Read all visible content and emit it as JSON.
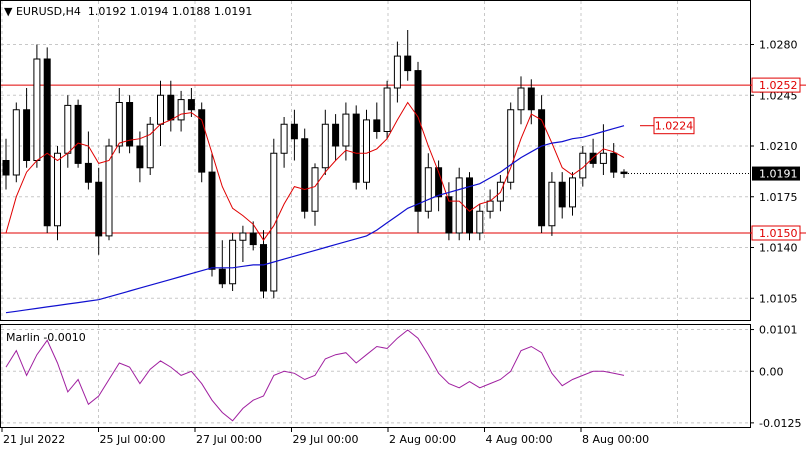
{
  "header": {
    "symbol_label": "EURUSD,H4",
    "open": "1.0192",
    "high": "1.0194",
    "low": "1.0188",
    "close": "1.0191"
  },
  "indicator": {
    "label": "Marlin -0.0010"
  },
  "colors": {
    "background": "#ffffff",
    "grid": "#c8c8c8",
    "level_line": "#e00000",
    "ma_fast": "#e00000",
    "ma_slow": "#1010d0",
    "oscillator": "#a020a0",
    "bull_candle": "#ffffff",
    "bear_candle": "#000000"
  },
  "price_axis": {
    "ticks": [
      "1.0280",
      "1.0245",
      "1.0210",
      "1.0175",
      "1.0140",
      "1.0105"
    ],
    "level_tags": [
      "1.0252",
      "1.0150"
    ],
    "current_price_tag": "1.0191",
    "ma_tag": "1.0224"
  },
  "oscillator_axis": {
    "ticks": [
      "0.0101",
      "0.00",
      "-0.0125"
    ]
  },
  "time_axis": {
    "labels": [
      "21 Jul 2022",
      "25 Jul 00:00",
      "27 Jul 00:00",
      "29 Jul 00:00",
      "2 Aug 00:00",
      "4 Aug 00:00",
      "8 Aug 00:00"
    ]
  },
  "chart_data": {
    "type": "candlestick",
    "ylim": [
      1.009,
      1.031
    ],
    "levels": [
      1.0252,
      1.015
    ],
    "candles": [
      [
        1.02,
        1.0215,
        1.018,
        1.019
      ],
      [
        1.019,
        1.024,
        1.0185,
        1.0235
      ],
      [
        1.0235,
        1.025,
        1.0195,
        1.02
      ],
      [
        1.02,
        1.028,
        1.0195,
        1.027
      ],
      [
        1.027,
        1.0278,
        1.015,
        1.0155
      ],
      [
        1.0155,
        1.021,
        1.0145,
        1.0205
      ],
      [
        1.0205,
        1.0245,
        1.0195,
        1.0238
      ],
      [
        1.0238,
        1.0242,
        1.0195,
        1.0198
      ],
      [
        1.0198,
        1.022,
        1.018,
        1.0185
      ],
      [
        1.0185,
        1.0195,
        1.0135,
        1.0148
      ],
      [
        1.0148,
        1.0215,
        1.0145,
        1.021
      ],
      [
        1.021,
        1.025,
        1.0205,
        1.024
      ],
      [
        1.024,
        1.0245,
        1.0205,
        1.021
      ],
      [
        1.021,
        1.022,
        1.0185,
        1.0195
      ],
      [
        1.0195,
        1.023,
        1.019,
        1.0225
      ],
      [
        1.0225,
        1.0255,
        1.021,
        1.0245
      ],
      [
        1.0245,
        1.0255,
        1.022,
        1.0228
      ],
      [
        1.0228,
        1.0248,
        1.022,
        1.0242
      ],
      [
        1.0242,
        1.025,
        1.023,
        1.0235
      ],
      [
        1.0235,
        1.024,
        1.0185,
        1.0192
      ],
      [
        1.0192,
        1.0205,
        1.012,
        1.0125
      ],
      [
        1.0125,
        1.0145,
        1.0112,
        1.0115
      ],
      [
        1.0115,
        1.015,
        1.011,
        1.0145
      ],
      [
        1.0145,
        1.0155,
        1.013,
        1.015
      ],
      [
        1.015,
        1.0158,
        1.0138,
        1.0142
      ],
      [
        1.0142,
        1.0152,
        1.0105,
        1.011
      ],
      [
        1.011,
        1.0215,
        1.0105,
        1.0205
      ],
      [
        1.0205,
        1.023,
        1.0195,
        1.0225
      ],
      [
        1.0225,
        1.0235,
        1.02,
        1.0215
      ],
      [
        1.0215,
        1.0222,
        1.016,
        1.0165
      ],
      [
        1.0165,
        1.0198,
        1.0155,
        1.0195
      ],
      [
        1.0195,
        1.0235,
        1.019,
        1.0225
      ],
      [
        1.0225,
        1.0232,
        1.02,
        1.021
      ],
      [
        1.021,
        1.024,
        1.02,
        1.0232
      ],
      [
        1.0232,
        1.0238,
        1.018,
        1.0185
      ],
      [
        1.0185,
        1.0235,
        1.018,
        1.0228
      ],
      [
        1.0228,
        1.024,
        1.0215,
        1.022
      ],
      [
        1.022,
        1.0255,
        1.0215,
        1.025
      ],
      [
        1.025,
        1.0282,
        1.024,
        1.0272
      ],
      [
        1.0272,
        1.029,
        1.0255,
        1.0262
      ],
      [
        1.0262,
        1.0268,
        1.015,
        1.0165
      ],
      [
        1.0165,
        1.0205,
        1.016,
        1.0195
      ],
      [
        1.0195,
        1.02,
        1.0165,
        1.0175
      ],
      [
        1.0175,
        1.0185,
        1.0145,
        1.015
      ],
      [
        1.015,
        1.0195,
        1.0145,
        1.0188
      ],
      [
        1.0188,
        1.0192,
        1.0145,
        1.015
      ],
      [
        1.015,
        1.017,
        1.0145,
        1.0165
      ],
      [
        1.0165,
        1.018,
        1.016,
        1.0172
      ],
      [
        1.0172,
        1.019,
        1.0165,
        1.0185
      ],
      [
        1.0185,
        1.024,
        1.018,
        1.0235
      ],
      [
        1.0235,
        1.0258,
        1.0225,
        1.025
      ],
      [
        1.025,
        1.0256,
        1.0225,
        1.0235
      ],
      [
        1.0235,
        1.0245,
        1.015,
        1.0155
      ],
      [
        1.0155,
        1.0192,
        1.0148,
        1.0185
      ],
      [
        1.0185,
        1.0192,
        1.016,
        1.0168
      ],
      [
        1.0168,
        1.0192,
        1.0162,
        1.0188
      ],
      [
        1.0188,
        1.021,
        1.0182,
        1.0205
      ],
      [
        1.0205,
        1.0215,
        1.0195,
        1.0198
      ],
      [
        1.0198,
        1.0225,
        1.019,
        1.0205
      ],
      [
        1.0205,
        1.0212,
        1.0188,
        1.0192
      ],
      [
        1.0192,
        1.0194,
        1.0188,
        1.0191
      ]
    ],
    "ma_fast": [
      1.015,
      1.0175,
      1.0192,
      1.02,
      1.0205,
      1.02,
      1.0205,
      1.0212,
      1.021,
      1.0198,
      1.02,
      1.0212,
      1.0214,
      1.0215,
      1.0218,
      1.0225,
      1.0228,
      1.0232,
      1.0233,
      1.0228,
      1.0205,
      1.0182,
      1.0167,
      1.0162,
      1.0156,
      1.0145,
      1.0155,
      1.017,
      1.0182,
      1.018,
      1.0182,
      1.0192,
      1.02,
      1.0207,
      1.0205,
      1.0205,
      1.0208,
      1.0215,
      1.0228,
      1.024,
      1.023,
      1.021,
      1.0192,
      1.0172,
      1.0172,
      1.0165,
      1.017,
      1.0172,
      1.0178,
      1.0195,
      1.0215,
      1.0232,
      1.0228,
      1.0212,
      1.0195,
      1.019,
      1.0195,
      1.0202,
      1.0208,
      1.0206,
      1.0202
    ],
    "ma_slow": [
      1.0095,
      1.0096,
      1.0097,
      1.0098,
      1.0099,
      1.01,
      1.0101,
      1.0102,
      1.0103,
      1.0104,
      1.0106,
      1.0108,
      1.011,
      1.0112,
      1.0114,
      1.0116,
      1.0118,
      1.012,
      1.0122,
      1.0124,
      1.0126,
      1.0126,
      1.0126,
      1.0127,
      1.0128,
      1.0128,
      1.013,
      1.0132,
      1.0134,
      1.0136,
      1.0138,
      1.014,
      1.0142,
      1.0144,
      1.0146,
      1.0148,
      1.0152,
      1.0157,
      1.0162,
      1.0167,
      1.017,
      1.0173,
      1.0176,
      1.0178,
      1.018,
      1.0182,
      1.0184,
      1.0188,
      1.0192,
      1.0197,
      1.0202,
      1.0206,
      1.021,
      1.0212,
      1.0213,
      1.0215,
      1.0216,
      1.0218,
      1.022,
      1.0222,
      1.0224
    ],
    "oscillator_ylim": [
      -0.0135,
      0.0112
    ],
    "oscillator": [
      0.001,
      0.005,
      -0.001,
      0.004,
      0.0075,
      0.002,
      -0.005,
      -0.002,
      -0.008,
      -0.006,
      -0.002,
      0.002,
      0.001,
      -0.003,
      0.0005,
      0.0025,
      0.001,
      -0.001,
      0.0,
      -0.003,
      -0.007,
      -0.01,
      -0.012,
      -0.009,
      -0.007,
      -0.006,
      -0.001,
      0.0,
      -0.0005,
      -0.002,
      -0.001,
      0.003,
      0.004,
      0.0045,
      0.002,
      0.004,
      0.006,
      0.0055,
      0.008,
      0.01,
      0.008,
      0.004,
      -0.0005,
      -0.003,
      -0.004,
      -0.0025,
      -0.004,
      -0.003,
      -0.002,
      0.0,
      0.005,
      0.006,
      0.0045,
      -0.0005,
      -0.0035,
      -0.002,
      -0.001,
      0.0,
      0.0,
      -0.0005,
      -0.001
    ]
  }
}
